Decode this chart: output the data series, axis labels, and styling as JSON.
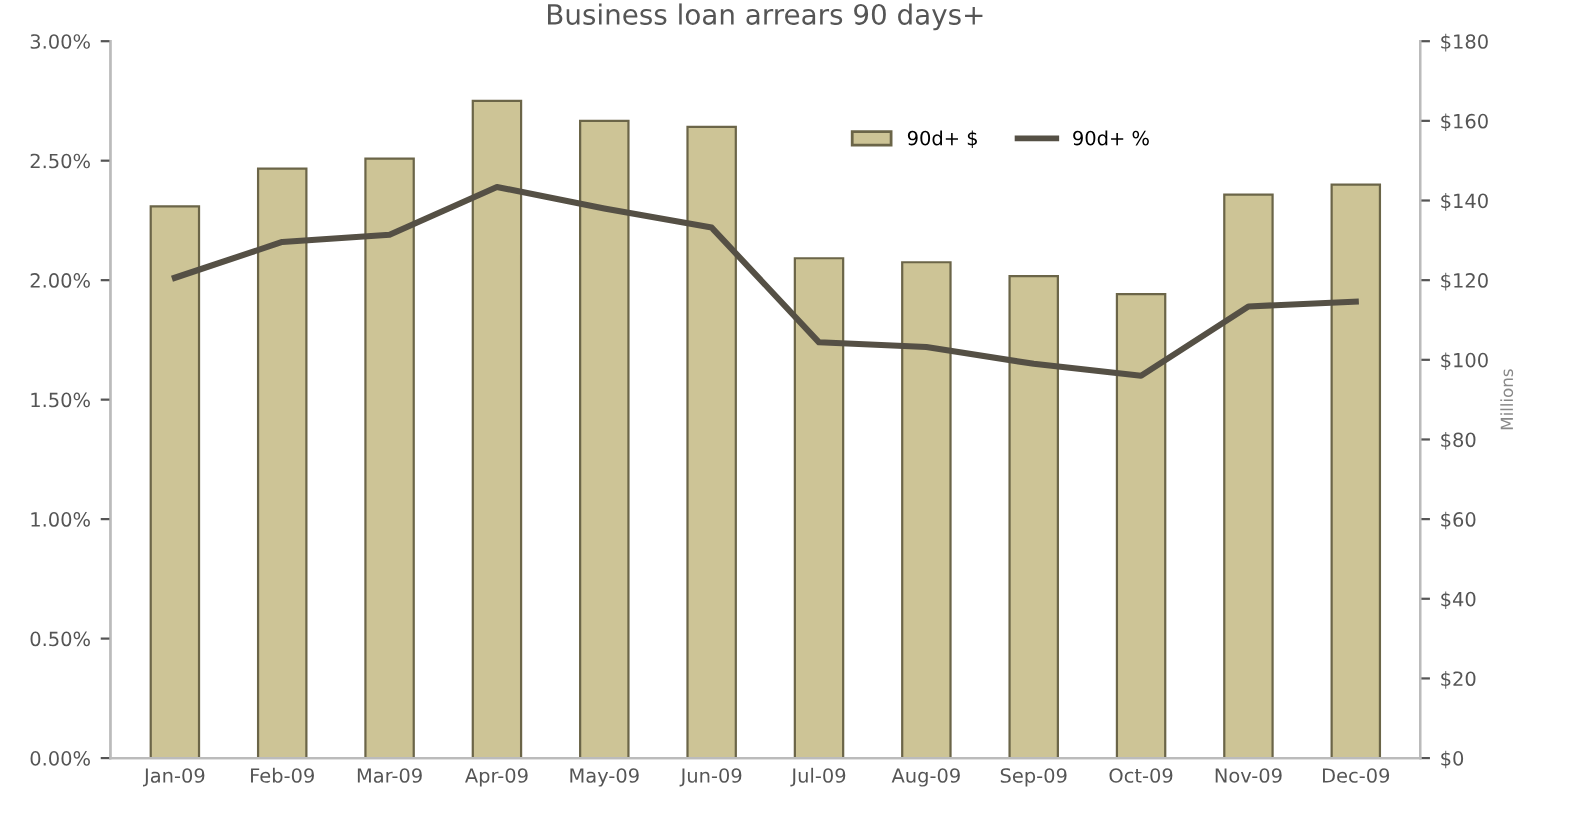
{
  "chart_data": {
    "type": "bar",
    "title": "Business loan arrears 90 days+",
    "y2label": "Millions",
    "categories": [
      "Jan-09",
      "Feb-09",
      "Mar-09",
      "Apr-09",
      "May-09",
      "Jun-09",
      "Jul-09",
      "Aug-09",
      "Sep-09",
      "Oct-09",
      "Nov-09",
      "Dec-09"
    ],
    "series": [
      {
        "name": "90d+ $",
        "axis": "y2",
        "color": "#cdc496",
        "values": [
          138.5,
          148,
          150.5,
          165,
          160,
          158.5,
          125.5,
          124.5,
          121,
          116.5,
          141.5,
          144
        ]
      },
      {
        "name": "90d+ %",
        "type": "line",
        "axis": "y",
        "color": "#555045",
        "values": [
          2.01,
          2.16,
          2.19,
          2.39,
          2.3,
          2.22,
          1.74,
          1.72,
          1.65,
          1.6,
          1.89,
          1.91
        ]
      }
    ],
    "ylim": [
      0,
      3
    ],
    "yticks": [
      {
        "value": 0,
        "label": "0.00%"
      },
      {
        "value": 0.5,
        "label": "0.50%"
      },
      {
        "value": 1,
        "label": "1.00%"
      },
      {
        "value": 1.5,
        "label": "1.50%"
      },
      {
        "value": 2,
        "label": "2.00%"
      },
      {
        "value": 2.5,
        "label": "2.50%"
      },
      {
        "value": 3,
        "label": "3.00%"
      }
    ],
    "y2lim": [
      0,
      180
    ],
    "y2ticks": [
      {
        "value": 0,
        "label": "$0"
      },
      {
        "value": 20,
        "label": "$20"
      },
      {
        "value": 40,
        "label": "$40"
      },
      {
        "value": 60,
        "label": "$60"
      },
      {
        "value": 80,
        "label": "$80"
      },
      {
        "value": 100,
        "label": "$100"
      },
      {
        "value": 120,
        "label": "$120"
      },
      {
        "value": 140,
        "label": "$140"
      },
      {
        "value": 160,
        "label": "$160"
      },
      {
        "value": 180,
        "label": "$180"
      }
    ],
    "grid": false,
    "legend": "top",
    "marker": "none",
    "line_style": "solid"
  }
}
